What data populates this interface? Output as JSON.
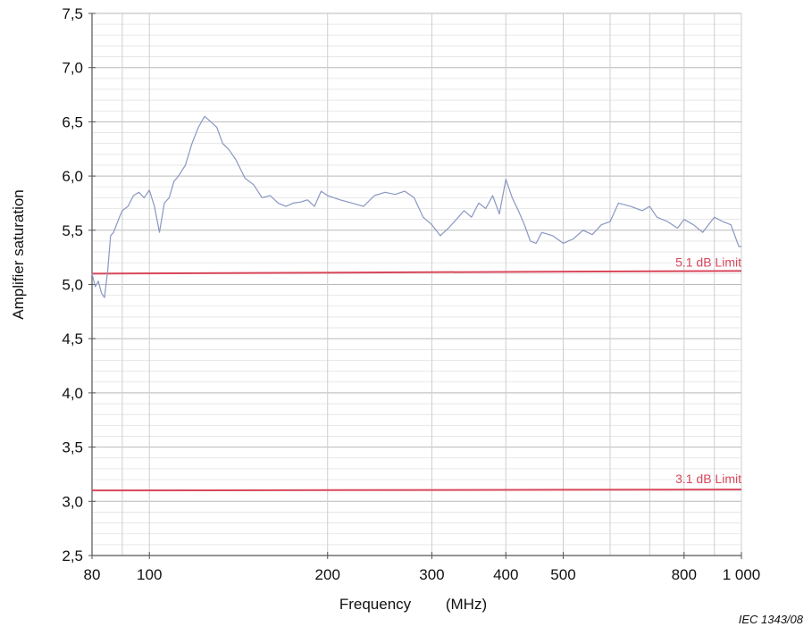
{
  "chart_data": {
    "type": "line",
    "title": "",
    "xlabel": "Frequency",
    "xlabel_unit": "(MHz)",
    "ylabel": "Amplifier saturation",
    "x_scale": "log",
    "xlim": [
      80,
      1000
    ],
    "ylim": [
      2.5,
      7.5
    ],
    "x_ticks": [
      80,
      100,
      200,
      300,
      400,
      500,
      800,
      1000
    ],
    "x_tick_labels": [
      "80",
      "100",
      "200",
      "300",
      "400",
      "500",
      "800",
      "1 000"
    ],
    "y_ticks": [
      2.5,
      3.0,
      3.5,
      4.0,
      4.5,
      5.0,
      5.5,
      6.0,
      6.5,
      7.0,
      7.5
    ],
    "y_tick_labels": [
      "2,5",
      "3,0",
      "3,5",
      "4,0",
      "4,5",
      "5,0",
      "5,5",
      "6,0",
      "6,5",
      "7,0",
      "7,5"
    ],
    "grid": true,
    "colors": {
      "series": "#8a97c2",
      "limit": "#d9475b",
      "grid": "#c8c8c8",
      "axis": "#444444"
    },
    "series": [
      {
        "x": [
          80,
          81,
          82,
          83,
          84,
          85,
          86,
          87,
          88,
          89,
          90,
          92,
          94,
          96,
          98,
          100,
          102,
          104,
          106,
          108,
          110,
          112,
          115,
          118,
          121,
          124,
          127,
          130,
          133,
          136,
          140,
          145,
          150,
          155,
          160,
          165,
          170,
          175,
          180,
          185,
          190,
          195,
          200,
          210,
          220,
          230,
          240,
          250,
          260,
          270,
          280,
          290,
          300,
          310,
          320,
          330,
          340,
          350,
          360,
          370,
          380,
          390,
          400,
          410,
          420,
          430,
          440,
          450,
          460,
          480,
          500,
          520,
          540,
          560,
          580,
          600,
          620,
          650,
          680,
          700,
          720,
          750,
          780,
          800,
          830,
          860,
          900,
          930,
          960,
          990,
          1000
        ],
        "y": [
          5.1,
          4.98,
          5.03,
          4.92,
          4.88,
          5.12,
          5.45,
          5.48,
          5.55,
          5.62,
          5.68,
          5.72,
          5.82,
          5.85,
          5.8,
          5.87,
          5.72,
          5.48,
          5.75,
          5.8,
          5.95,
          6.0,
          6.1,
          6.3,
          6.45,
          6.55,
          6.5,
          6.45,
          6.3,
          6.25,
          6.15,
          5.98,
          5.92,
          5.8,
          5.82,
          5.75,
          5.72,
          5.75,
          5.76,
          5.78,
          5.72,
          5.86,
          5.82,
          5.78,
          5.75,
          5.72,
          5.82,
          5.85,
          5.83,
          5.86,
          5.8,
          5.62,
          5.55,
          5.45,
          5.52,
          5.6,
          5.68,
          5.62,
          5.75,
          5.7,
          5.82,
          5.65,
          5.97,
          5.8,
          5.68,
          5.55,
          5.4,
          5.38,
          5.48,
          5.45,
          5.38,
          5.42,
          5.5,
          5.46,
          5.55,
          5.58,
          5.75,
          5.72,
          5.68,
          5.72,
          5.62,
          5.58,
          5.52,
          5.6,
          5.55,
          5.48,
          5.62,
          5.58,
          5.55,
          5.35,
          5.35
        ]
      }
    ],
    "reference_lines": [
      {
        "label": "5.1 dB Limit",
        "y": 5.1
      },
      {
        "label": "3.1 dB Limit",
        "y": 3.1
      }
    ],
    "source_label": "IEC   1343/08"
  }
}
